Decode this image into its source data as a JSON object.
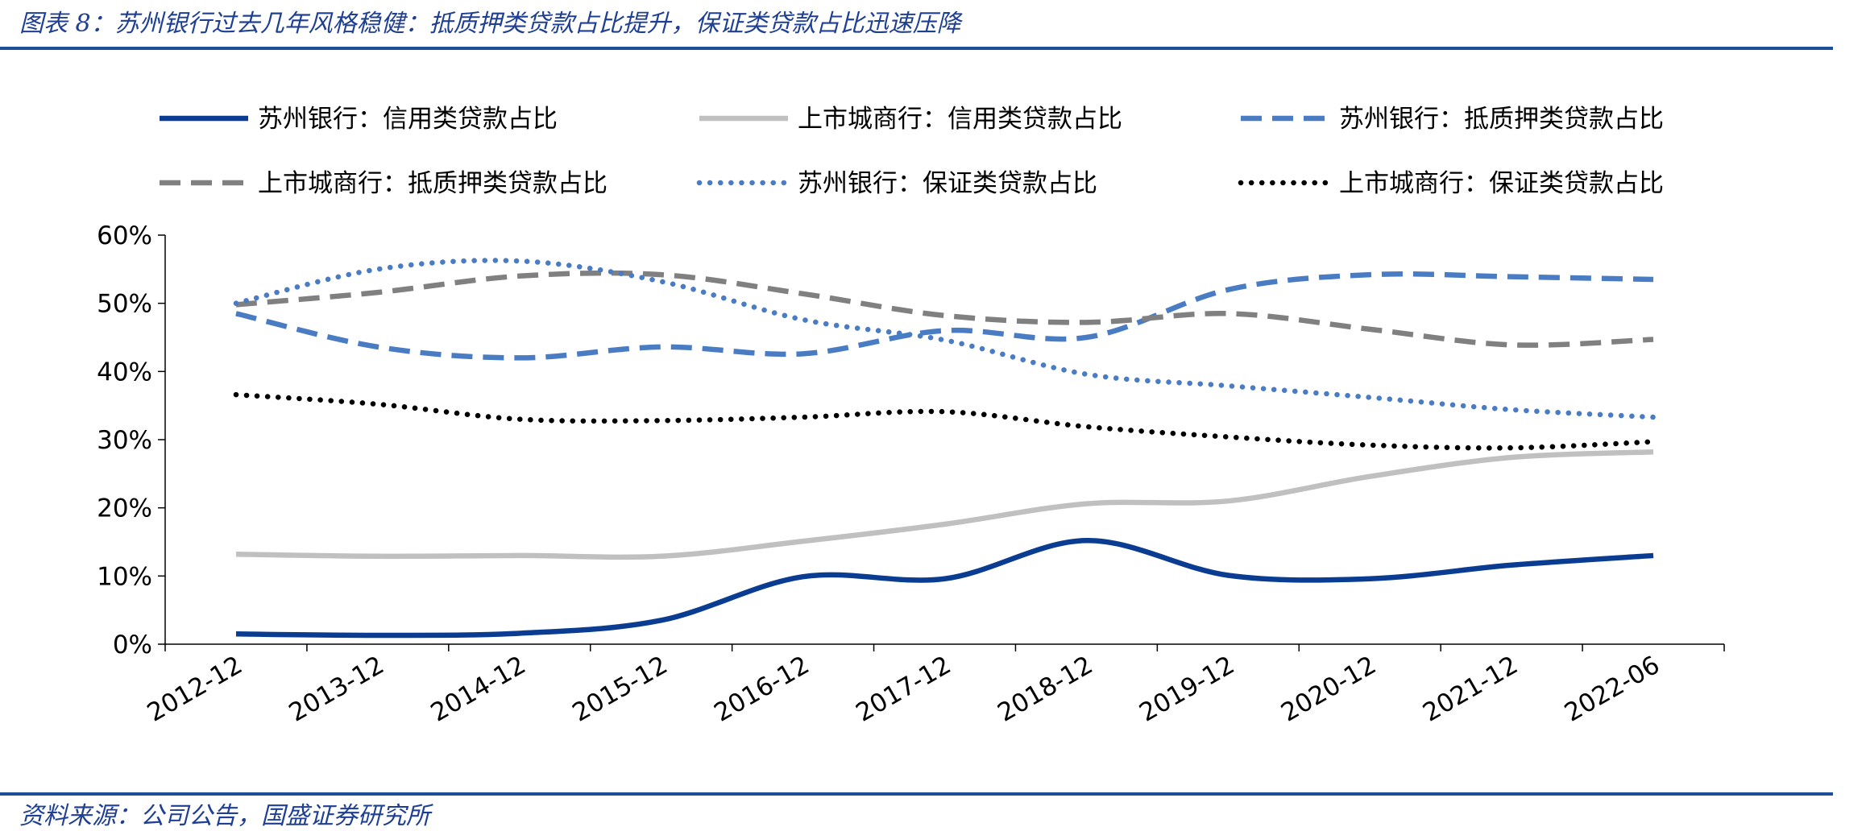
{
  "header": {
    "figure_title": "图表 8：苏州银行过去几年风格稳健：抵质押类贷款占比提升，保证类贷款占比迅速压降"
  },
  "footer": {
    "source": "资料来源：公司公告，国盛证券研究所"
  },
  "chart_data": {
    "type": "line",
    "title": "",
    "xlabel": "",
    "ylabel": "",
    "ylim": [
      0,
      60
    ],
    "y_ticks": [
      "0%",
      "10%",
      "20%",
      "30%",
      "40%",
      "50%",
      "60%"
    ],
    "categories": [
      "2012-12",
      "2013-12",
      "2014-12",
      "2015-12",
      "2016-12",
      "2017-12",
      "2018-12",
      "2019-12",
      "2020-12",
      "2021-12",
      "2022-06"
    ],
    "legend_position": "top",
    "series": [
      {
        "name": "苏州银行：信用类贷款占比",
        "color": "#0a3d91",
        "style": "solid",
        "values": [
          1.5,
          1.3,
          1.6,
          3.5,
          9.9,
          9.6,
          15.2,
          10.1,
          9.6,
          11.6,
          13.0
        ]
      },
      {
        "name": "上市城商行：信用类贷款占比",
        "color": "#c0c0c0",
        "style": "solid",
        "values": [
          13.2,
          12.9,
          13.0,
          12.9,
          15.1,
          17.6,
          20.6,
          21.0,
          24.6,
          27.4,
          28.2
        ]
      },
      {
        "name": "苏州银行：抵质押类贷款占比",
        "color": "#4a7cc4",
        "style": "dashed",
        "values": [
          48.5,
          43.6,
          42.0,
          43.6,
          42.6,
          46.0,
          45.0,
          52.0,
          54.2,
          53.9,
          53.5
        ]
      },
      {
        "name": "上市城商行：抵质押类贷款占比",
        "color": "#808080",
        "style": "dashed",
        "values": [
          49.8,
          51.6,
          54.0,
          54.2,
          51.4,
          48.2,
          47.2,
          48.5,
          46.2,
          43.9,
          44.7
        ]
      },
      {
        "name": "苏州银行：保证类贷款占比",
        "color": "#4a7cc4",
        "style": "dotted",
        "values": [
          50.0,
          55.0,
          56.2,
          53.2,
          47.6,
          44.6,
          39.6,
          37.9,
          36.2,
          34.4,
          33.3
        ]
      },
      {
        "name": "上市城商行：保证类贷款占比",
        "color": "#000000",
        "style": "dotted",
        "values": [
          36.6,
          35.2,
          33.0,
          32.8,
          33.3,
          34.1,
          31.9,
          30.4,
          29.2,
          28.8,
          29.7
        ]
      }
    ]
  }
}
